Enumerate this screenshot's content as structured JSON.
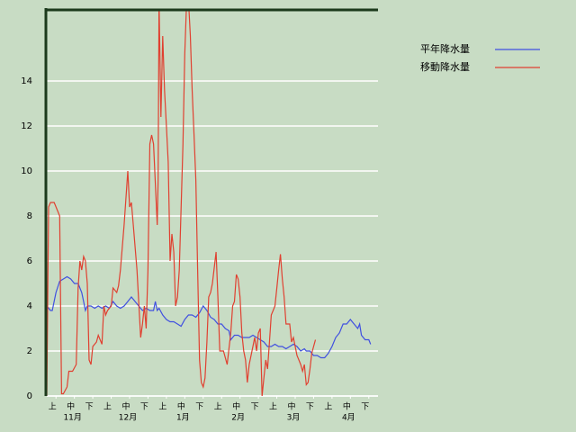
{
  "chart_data": {
    "type": "line",
    "xlim": [
      0,
      18
    ],
    "ylim": [
      0,
      17.2
    ],
    "yticks": [
      0,
      2,
      4,
      6,
      8,
      10,
      12,
      14
    ],
    "grid": true,
    "legend": "upper right",
    "xticks": [
      {
        "value": 0.5,
        "label": "上"
      },
      {
        "value": 1.5,
        "label": "中"
      },
      {
        "value": 2.5,
        "label": "下"
      },
      {
        "value": 3.5,
        "label": "上"
      },
      {
        "value": 4.5,
        "label": "中"
      },
      {
        "value": 5.5,
        "label": "下"
      },
      {
        "value": 6.5,
        "label": "上"
      },
      {
        "value": 7.5,
        "label": "中"
      },
      {
        "value": 8.5,
        "label": "下"
      },
      {
        "value": 9.5,
        "label": "上"
      },
      {
        "value": 10.5,
        "label": "中"
      },
      {
        "value": 11.5,
        "label": "下"
      },
      {
        "value": 12.5,
        "label": "上"
      },
      {
        "value": 13.5,
        "label": "中"
      },
      {
        "value": 14.5,
        "label": "下"
      },
      {
        "value": 15.5,
        "label": "上"
      },
      {
        "value": 16.5,
        "label": "中"
      },
      {
        "value": 17.5,
        "label": "下"
      }
    ],
    "x_group_labels": [
      {
        "value": 1.5,
        "label": "11月"
      },
      {
        "value": 4.5,
        "label": "12月"
      },
      {
        "value": 7.5,
        "label": "1月"
      },
      {
        "value": 10.5,
        "label": "2月"
      },
      {
        "value": 13.5,
        "label": "3月"
      },
      {
        "value": 16.5,
        "label": "4月"
      }
    ],
    "series": [
      {
        "name": "平年降水量",
        "color": "#4050e0",
        "x": [
          0,
          0.2,
          0.3,
          0.5,
          0.7,
          0.9,
          1.1,
          1.3,
          1.5,
          1.7,
          1.9,
          2.0,
          2.1,
          2.2,
          2.4,
          2.6,
          2.8,
          3.0,
          3.2,
          3.4,
          3.6,
          3.8,
          4.0,
          4.2,
          4.4,
          4.6,
          4.8,
          5.0,
          5.2,
          5.4,
          5.6,
          5.8,
          5.9,
          6.0,
          6.1,
          6.3,
          6.5,
          6.7,
          6.9,
          7.1,
          7.3,
          7.5,
          7.7,
          7.9,
          8.1,
          8.3,
          8.5,
          8.7,
          8.9,
          9.1,
          9.3,
          9.5,
          9.7,
          9.9,
          10.0,
          10.2,
          10.4,
          10.6,
          10.8,
          11.0,
          11.2,
          11.4,
          11.6,
          11.8,
          12.0,
          12.2,
          12.4,
          12.6,
          12.8,
          13.0,
          13.2,
          13.4,
          13.6,
          13.8,
          14.0,
          14.1,
          14.3,
          14.5,
          14.7,
          14.9,
          15.1,
          15.3,
          15.5,
          15.7,
          15.9,
          16.1,
          16.3,
          16.5,
          16.7,
          16.9,
          17.0,
          17.1,
          17.3,
          17.5,
          17.6
        ],
        "values": [
          4.0,
          3.8,
          3.8,
          4.6,
          5.1,
          5.2,
          5.3,
          5.2,
          5.0,
          5.0,
          4.6,
          4.2,
          3.8,
          4.0,
          4.0,
          3.9,
          4.0,
          3.9,
          4.0,
          3.9,
          4.2,
          4.0,
          3.9,
          4.0,
          4.2,
          4.4,
          4.2,
          4.0,
          3.8,
          3.9,
          3.8,
          3.8,
          4.2,
          3.8,
          3.9,
          3.6,
          3.4,
          3.3,
          3.3,
          3.2,
          3.1,
          3.4,
          3.6,
          3.6,
          3.5,
          3.7,
          4.0,
          3.8,
          3.5,
          3.4,
          3.2,
          3.2,
          3.0,
          2.9,
          2.5,
          2.7,
          2.7,
          2.6,
          2.6,
          2.6,
          2.7,
          2.6,
          2.5,
          2.4,
          2.2,
          2.2,
          2.3,
          2.2,
          2.2,
          2.1,
          2.2,
          2.3,
          2.2,
          2.0,
          2.1,
          2.0,
          2.0,
          1.8,
          1.8,
          1.7,
          1.7,
          1.9,
          2.2,
          2.6,
          2.8,
          3.2,
          3.2,
          3.4,
          3.2,
          3.0,
          3.2,
          2.7,
          2.5,
          2.5,
          2.3
        ]
      },
      {
        "name": "移動降水量",
        "color": "#e04030",
        "x": [
          0,
          0.1,
          0.2,
          0.4,
          0.6,
          0.7,
          0.8,
          0.9,
          1.1,
          1.2,
          1.4,
          1.6,
          1.7,
          1.8,
          1.9,
          2.0,
          2.1,
          2.2,
          2.3,
          2.4,
          2.5,
          2.7,
          2.8,
          3.0,
          3.1,
          3.2,
          3.3,
          3.5,
          3.6,
          3.8,
          3.9,
          4.0,
          4.2,
          4.4,
          4.5,
          4.6,
          4.7,
          4.9,
          5.1,
          5.2,
          5.3,
          5.4,
          5.5,
          5.6,
          5.7,
          5.8,
          6.0,
          6.05,
          6.1,
          6.2,
          6.3,
          6.4,
          6.5,
          6.6,
          6.7,
          6.8,
          6.9,
          7.0,
          7.1,
          7.2,
          7.4,
          7.5,
          7.6,
          7.7,
          7.8,
          7.9,
          8.0,
          8.1,
          8.2,
          8.3,
          8.4,
          8.5,
          8.6,
          8.7,
          8.8,
          8.9,
          9.0,
          9.2,
          9.3,
          9.4,
          9.6,
          9.8,
          10.0,
          10.1,
          10.2,
          10.3,
          10.4,
          10.5,
          10.6,
          10.7,
          10.8,
          10.9,
          11.0,
          11.2,
          11.3,
          11.4,
          11.5,
          11.6,
          11.7,
          11.8,
          11.9,
          12.0,
          12.1,
          12.2,
          12.3,
          12.4,
          12.5,
          12.6,
          12.7,
          12.8,
          12.9,
          13.0,
          13.2,
          13.3,
          13.4,
          13.5,
          13.6,
          13.7,
          13.8,
          13.9,
          14.0,
          14.1,
          14.2,
          14.3,
          14.4,
          14.6
        ],
        "values": [
          0,
          8.4,
          8.6,
          8.6,
          8.2,
          8.0,
          0.1,
          0.1,
          0.4,
          1.1,
          1.1,
          1.4,
          4.8,
          6.0,
          5.6,
          6.2,
          6.0,
          5.0,
          1.6,
          1.4,
          2.2,
          2.4,
          2.7,
          2.3,
          4.0,
          3.6,
          3.8,
          4.0,
          4.8,
          4.6,
          4.9,
          5.6,
          7.6,
          10.0,
          8.4,
          8.6,
          7.6,
          5.6,
          2.6,
          3.2,
          4.0,
          3.0,
          5.6,
          11.2,
          11.6,
          11.2,
          7.6,
          9.6,
          17.6,
          12.4,
          16.0,
          13.6,
          12.0,
          10.4,
          6.0,
          7.2,
          6.4,
          4.0,
          4.4,
          5.6,
          11.2,
          15.2,
          17.6,
          17.6,
          16.0,
          13.6,
          11.6,
          9.6,
          5.6,
          1.6,
          0.6,
          0.4,
          0.8,
          2.4,
          4.4,
          4.6,
          5.0,
          6.4,
          4.4,
          2.0,
          2.0,
          1.4,
          2.8,
          4.0,
          4.2,
          5.4,
          5.2,
          4.4,
          2.8,
          2.0,
          1.6,
          0.6,
          1.4,
          2.2,
          2.6,
          2.0,
          2.8,
          3.0,
          0,
          0.8,
          1.6,
          1.2,
          2.4,
          3.6,
          3.8,
          4.0,
          4.8,
          5.6,
          6.3,
          5.2,
          4.4,
          3.2,
          3.2,
          2.4,
          2.6,
          2.2,
          1.8,
          1.6,
          1.4,
          1.1,
          1.4,
          0.5,
          0.6,
          1.2,
          1.9,
          2.5
        ]
      }
    ]
  }
}
